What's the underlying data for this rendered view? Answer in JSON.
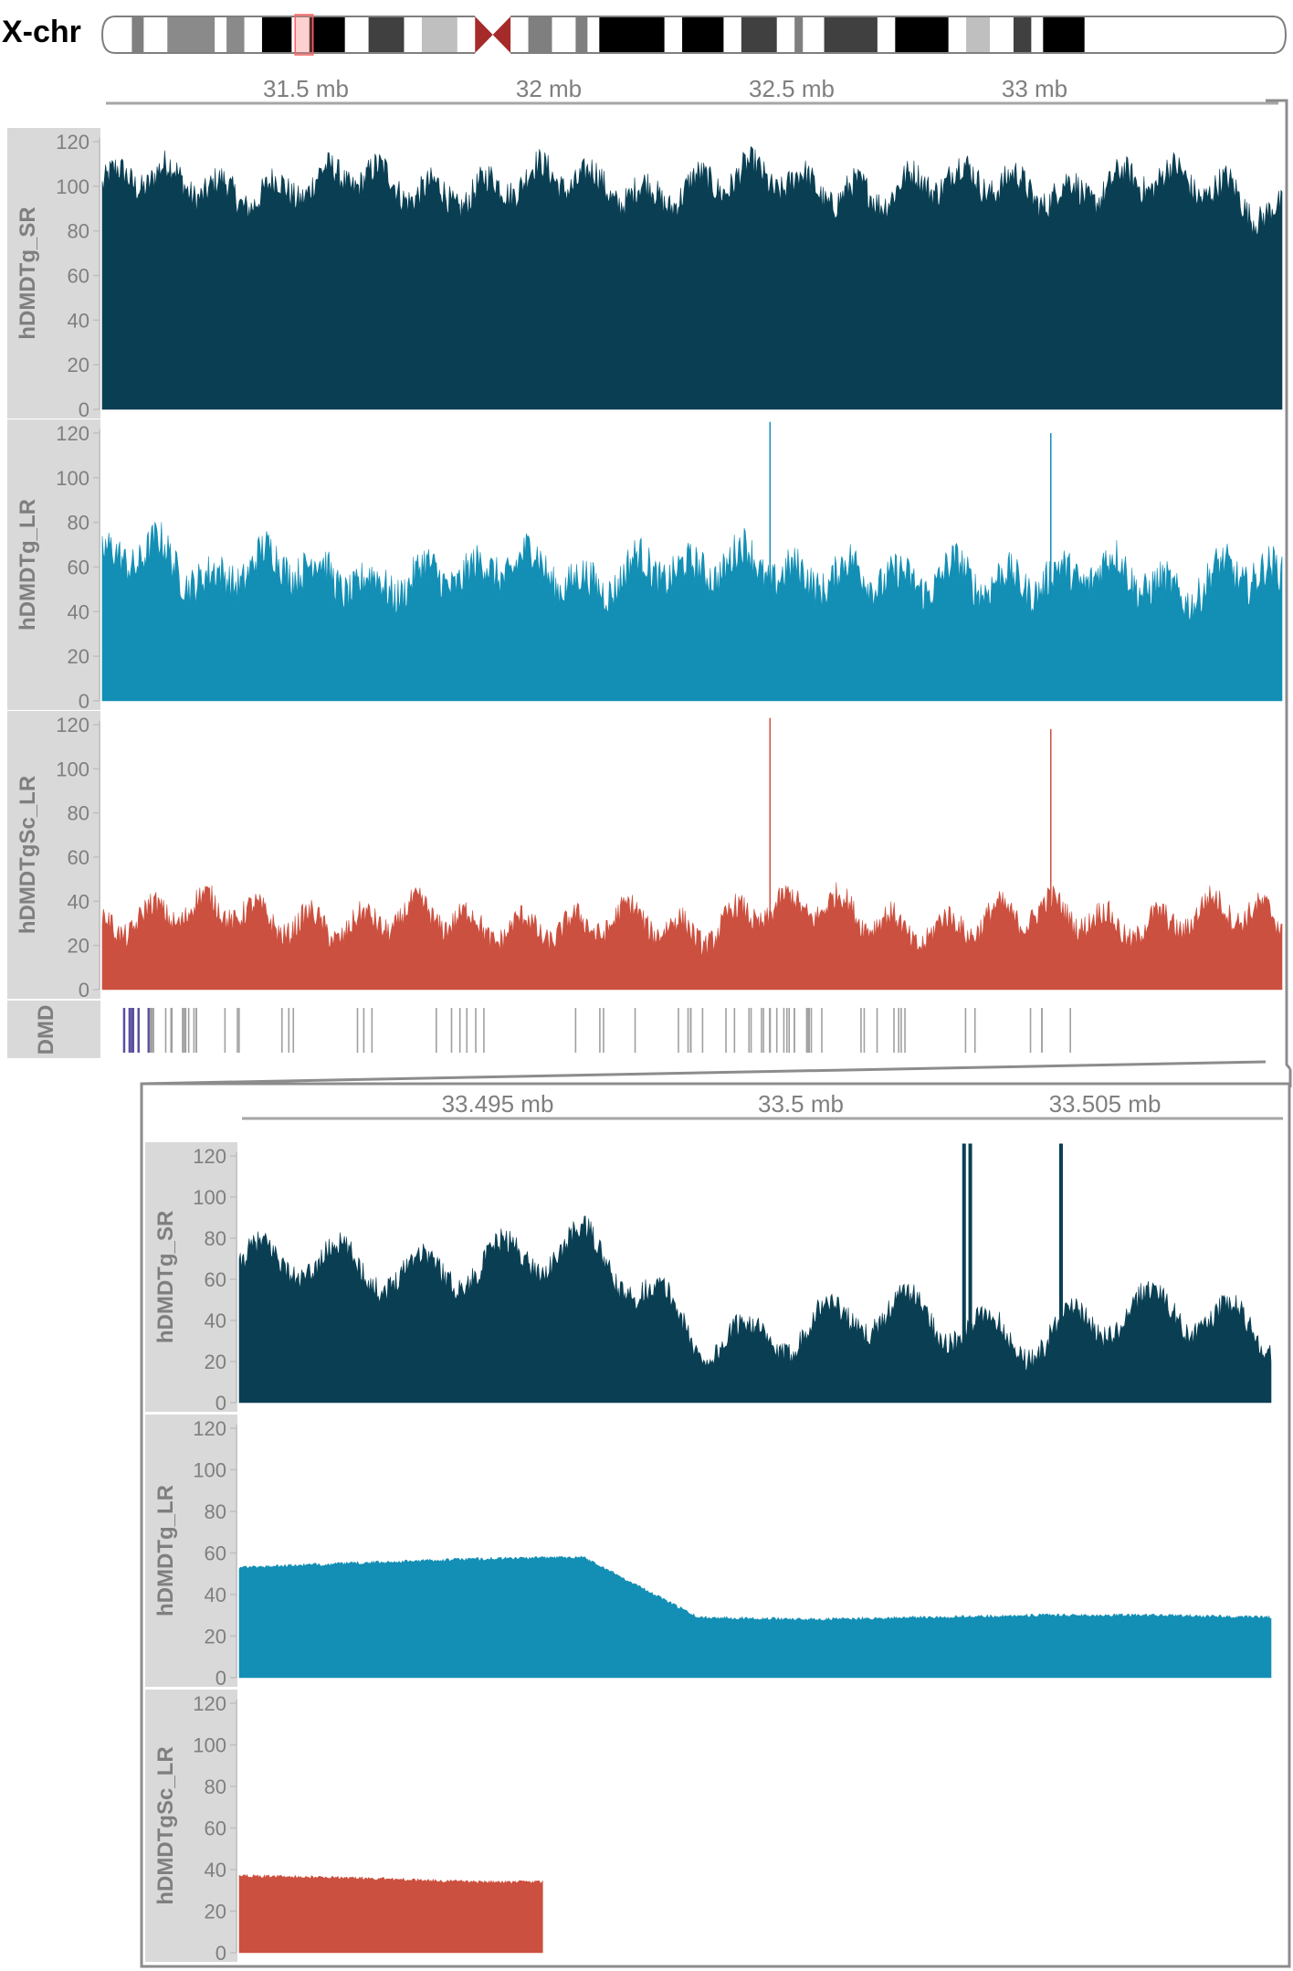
{
  "chromosome": {
    "label": "X-chr",
    "bands": [
      {
        "start": 0.0,
        "end": 0.025,
        "color": "#ffffff"
      },
      {
        "start": 0.025,
        "end": 0.035,
        "color": "#7f7f7f"
      },
      {
        "start": 0.035,
        "end": 0.055,
        "color": "#ffffff"
      },
      {
        "start": 0.055,
        "end": 0.095,
        "color": "#8a8a8a"
      },
      {
        "start": 0.095,
        "end": 0.105,
        "color": "#ffffff"
      },
      {
        "start": 0.105,
        "end": 0.12,
        "color": "#8a8a8a"
      },
      {
        "start": 0.12,
        "end": 0.135,
        "color": "#ffffff"
      },
      {
        "start": 0.135,
        "end": 0.16,
        "color": "#000000"
      },
      {
        "start": 0.16,
        "end": 0.175,
        "color": "#ffffff"
      },
      {
        "start": 0.175,
        "end": 0.205,
        "color": "#000000"
      },
      {
        "start": 0.205,
        "end": 0.225,
        "color": "#ffffff"
      },
      {
        "start": 0.225,
        "end": 0.255,
        "color": "#404040"
      },
      {
        "start": 0.255,
        "end": 0.27,
        "color": "#ffffff"
      },
      {
        "start": 0.27,
        "end": 0.3,
        "color": "#bfbfbf"
      },
      {
        "start": 0.3,
        "end": 0.315,
        "color": "#ffffff"
      },
      {
        "start": 0.315,
        "end": 0.345,
        "color": "#a52a2a"
      },
      {
        "start": 0.345,
        "end": 0.36,
        "color": "#ffffff"
      },
      {
        "start": 0.36,
        "end": 0.38,
        "color": "#7f7f7f"
      },
      {
        "start": 0.38,
        "end": 0.4,
        "color": "#ffffff"
      },
      {
        "start": 0.4,
        "end": 0.41,
        "color": "#7f7f7f"
      },
      {
        "start": 0.41,
        "end": 0.42,
        "color": "#ffffff"
      },
      {
        "start": 0.42,
        "end": 0.475,
        "color": "#000000"
      },
      {
        "start": 0.475,
        "end": 0.49,
        "color": "#ffffff"
      },
      {
        "start": 0.49,
        "end": 0.525,
        "color": "#000000"
      },
      {
        "start": 0.525,
        "end": 0.54,
        "color": "#ffffff"
      },
      {
        "start": 0.54,
        "end": 0.57,
        "color": "#404040"
      },
      {
        "start": 0.57,
        "end": 0.585,
        "color": "#ffffff"
      },
      {
        "start": 0.585,
        "end": 0.592,
        "color": "#7f7f7f"
      },
      {
        "start": 0.592,
        "end": 0.61,
        "color": "#ffffff"
      },
      {
        "start": 0.61,
        "end": 0.655,
        "color": "#404040"
      },
      {
        "start": 0.655,
        "end": 0.67,
        "color": "#ffffff"
      },
      {
        "start": 0.67,
        "end": 0.715,
        "color": "#000000"
      },
      {
        "start": 0.715,
        "end": 0.73,
        "color": "#ffffff"
      },
      {
        "start": 0.73,
        "end": 0.75,
        "color": "#bfbfbf"
      },
      {
        "start": 0.75,
        "end": 0.77,
        "color": "#ffffff"
      },
      {
        "start": 0.77,
        "end": 0.785,
        "color": "#404040"
      },
      {
        "start": 0.785,
        "end": 0.795,
        "color": "#ffffff"
      },
      {
        "start": 0.795,
        "end": 0.83,
        "color": "#000000"
      },
      {
        "start": 0.83,
        "end": 1.0,
        "color": "#ffffff"
      }
    ],
    "centromere": [
      0.315,
      0.345
    ],
    "highlight": [
      0.163,
      0.178
    ]
  },
  "colors": {
    "sr": "#0a3f53",
    "lr": "#138fb5",
    "sc": "#cc503f",
    "axis_text": "#7f7f7f",
    "label_bg": "#d9d9d9",
    "rule": "#a6a6a6",
    "gene_line": "#a0a0a0",
    "gene_exon": "#5a4fa0"
  },
  "top_panel": {
    "scale_ticks": [
      "31.5 mb",
      "32 mb",
      "32.5 mb",
      "33 mb"
    ],
    "tracks": [
      {
        "label": "hDMDTg_SR",
        "series": "sr",
        "y_ticks": [
          "0",
          "20",
          "40",
          "60",
          "80",
          "100",
          "120"
        ]
      },
      {
        "label": "hDMDTg_LR",
        "series": "lr",
        "y_ticks": [
          "0",
          "20",
          "40",
          "60",
          "80",
          "100",
          "120"
        ]
      },
      {
        "label": "hDMDTgSc_LR",
        "series": "sc",
        "y_ticks": [
          "0",
          "20",
          "40",
          "60",
          "80",
          "100",
          "120"
        ]
      }
    ],
    "gene_track_label": "DMD"
  },
  "zoom_panel": {
    "scale_ticks": [
      "33.495 mb",
      "33.5 mb",
      "33.505 mb"
    ],
    "tracks": [
      {
        "label": "hDMDTg_SR",
        "series": "sr",
        "y_ticks": [
          "0",
          "20",
          "40",
          "60",
          "80",
          "100",
          "120"
        ]
      },
      {
        "label": "hDMDTg_LR",
        "series": "lr",
        "y_ticks": [
          "0",
          "20",
          "40",
          "60",
          "80",
          "100",
          "120"
        ]
      },
      {
        "label": "hDMDTgSc_LR",
        "series": "sc",
        "y_ticks": [
          "0",
          "20",
          "40",
          "60",
          "80",
          "100",
          "120"
        ]
      }
    ]
  },
  "chart_data": [
    {
      "type": "area",
      "region": "overview",
      "x": [
        31.25,
        31.35,
        31.45,
        31.55,
        31.65,
        31.75,
        31.85,
        31.95,
        32.05,
        32.15,
        32.25,
        32.35,
        32.45,
        32.55,
        32.65,
        32.75,
        32.85,
        32.95,
        33.05,
        33.15,
        33.25,
        33.35,
        33.45
      ],
      "xlim": [
        31.2,
        33.51
      ],
      "ylim": [
        0,
        125
      ],
      "series": [
        {
          "name": "hDMDTg_SR",
          "values": [
            100,
            101,
            99,
            100,
            100,
            101,
            99,
            100,
            101,
            100,
            99,
            100,
            101,
            100,
            100,
            99,
            100,
            101,
            100,
            99,
            100,
            100,
            88
          ]
        },
        {
          "name": "hDMDTg_LR",
          "values": [
            58,
            70,
            55,
            60,
            55,
            54,
            58,
            52,
            62,
            54,
            60,
            52,
            65,
            58,
            56,
            48,
            60,
            55,
            52,
            57,
            50,
            60,
            50
          ]
        },
        {
          "name": "hDMDTgSc_LR",
          "values": [
            32,
            36,
            34,
            30,
            33,
            30,
            31,
            28,
            32,
            27,
            29,
            26,
            38,
            35,
            33,
            29,
            31,
            30,
            34,
            32,
            31,
            33,
            30
          ]
        }
      ]
    },
    {
      "type": "area",
      "region": "zoom",
      "x": [
        33.49,
        33.492,
        33.494,
        33.496,
        33.498,
        33.5,
        33.502,
        33.504,
        33.506,
        33.508
      ],
      "xlim": [
        33.4895,
        33.5087
      ],
      "ylim": [
        0,
        125
      ],
      "series": [
        {
          "name": "hDMDTg_SR",
          "values": [
            66,
            62,
            72,
            70,
            36,
            35,
            40,
            36,
            40,
            38
          ]
        },
        {
          "name": "hDMDTg_LR",
          "values": [
            53,
            55,
            57,
            58,
            29,
            28,
            29,
            30,
            30,
            29
          ]
        },
        {
          "name": "hDMDTgSc_LR",
          "values": [
            37,
            36,
            34,
            34,
            0,
            0,
            0,
            0,
            0,
            0
          ]
        }
      ]
    }
  ]
}
